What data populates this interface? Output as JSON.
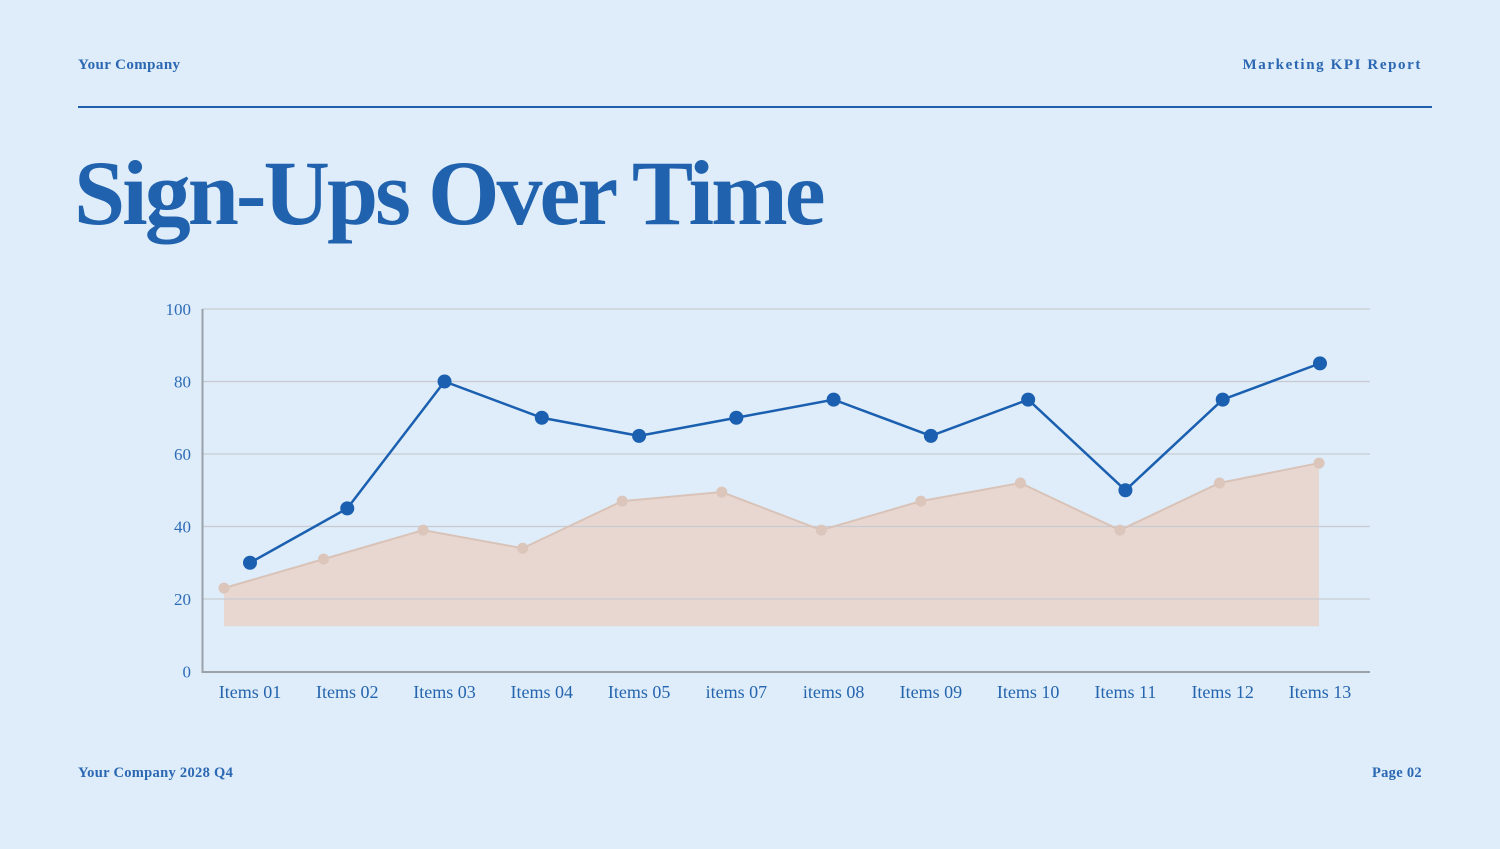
{
  "header": {
    "company": "Your Company",
    "report": "Marketing KPI Report"
  },
  "title": "Sign-Ups Over Time",
  "footer": {
    "left": "Your Company 2028 Q4",
    "right": "Page 02"
  },
  "colors": {
    "background": "#deedf9",
    "accent_blue": "#2162ae",
    "header_text": "#2b67b2",
    "line_series": "#1a5fb0",
    "area_fill": "#e8d6cf",
    "area_stroke": "#d9c3b8",
    "area_marker": "#dcc5ba",
    "gridline": "#c7cbd1",
    "axis_line": "#9aa1a9",
    "tick_text": "#2e6cb7",
    "category_text": "#2565af"
  },
  "chart_data": {
    "type": "line",
    "title": "",
    "xlabel": "",
    "ylabel": "",
    "categories": [
      "Items 01",
      "Items 02",
      "Items 03",
      "Items 04",
      "Items 05",
      "items 07",
      "items 08",
      "Items 09",
      "Items 10",
      "Items 11",
      "Items 12",
      "Items 13"
    ],
    "yticks": [
      0,
      20,
      40,
      60,
      80,
      100
    ],
    "ylim": [
      0,
      100
    ],
    "grid": true,
    "legend": "none",
    "series": [
      {
        "name": "sign-ups-line",
        "type": "line",
        "values": [
          30,
          45,
          80,
          70,
          65,
          70,
          75,
          65,
          75,
          50,
          75,
          85
        ]
      },
      {
        "name": "sign-ups-area",
        "type": "area",
        "baseline": 12.5,
        "values": [
          23,
          31,
          39,
          34,
          47,
          49.5,
          39,
          47,
          52,
          39,
          52,
          57.5
        ]
      }
    ]
  }
}
